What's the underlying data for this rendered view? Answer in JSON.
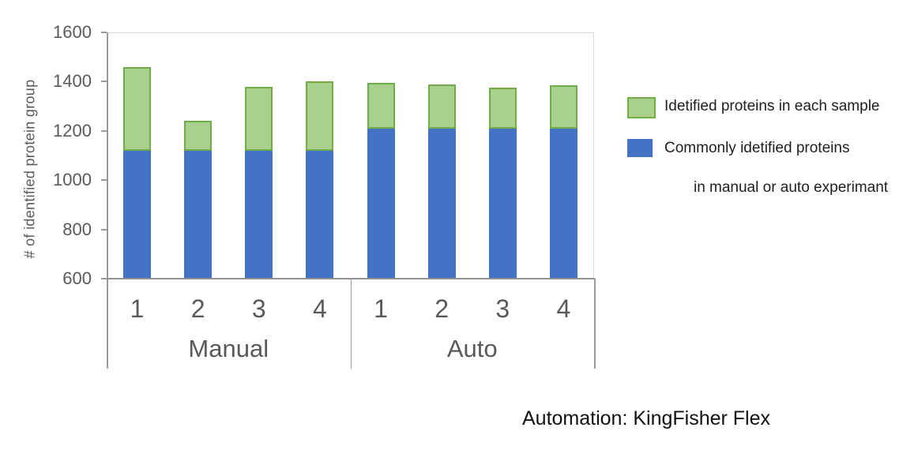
{
  "chart_data": {
    "type": "bar",
    "variant": "stacked-column",
    "title": "",
    "xlabel": "",
    "ylabel": "# of identified protein group",
    "ylim": [
      600,
      1600
    ],
    "yticks": [
      600,
      800,
      1000,
      1200,
      1400,
      1600
    ],
    "grid": false,
    "legend_position": "right",
    "categories": [
      "1",
      "2",
      "3",
      "4",
      "1",
      "2",
      "3",
      "4"
    ],
    "groups": [
      {
        "label": "Manual",
        "span": [
          0,
          3
        ]
      },
      {
        "label": "Auto",
        "span": [
          4,
          7
        ]
      }
    ],
    "series": [
      {
        "name": "Commonly idetified proteins in manual or auto experimant",
        "stack_order": "bottom",
        "color": "#4472c4",
        "values": [
          1120,
          1120,
          1120,
          1120,
          1210,
          1210,
          1210,
          1210
        ]
      },
      {
        "name": "Idetified proteins in each sample",
        "stack_order": "top",
        "color": "#a9d18e",
        "border_color": "#70ad47",
        "values": [
          340,
          120,
          260,
          280,
          185,
          180,
          165,
          175
        ]
      }
    ],
    "stack_totals": [
      1460,
      1240,
      1380,
      1400,
      1395,
      1390,
      1375,
      1385
    ]
  },
  "legend": {
    "items": [
      {
        "icon": "green-swatch",
        "color": "#a9d18e",
        "border_color": "#70ad47",
        "lines": [
          "Idetified proteins in each sample"
        ]
      },
      {
        "icon": "blue-swatch",
        "color": "#4472c4",
        "border_color": "#4472c4",
        "lines": [
          "Commonly idetified proteins",
          " in manual or auto experimant"
        ]
      }
    ]
  },
  "caption": "Automation: KingFisher Flex",
  "style": {
    "axis_line_color": "#919191",
    "divider_color": "#9a9a9a",
    "plot_border_color": "#d9d9d9",
    "tick_text_color": "#595959"
  }
}
